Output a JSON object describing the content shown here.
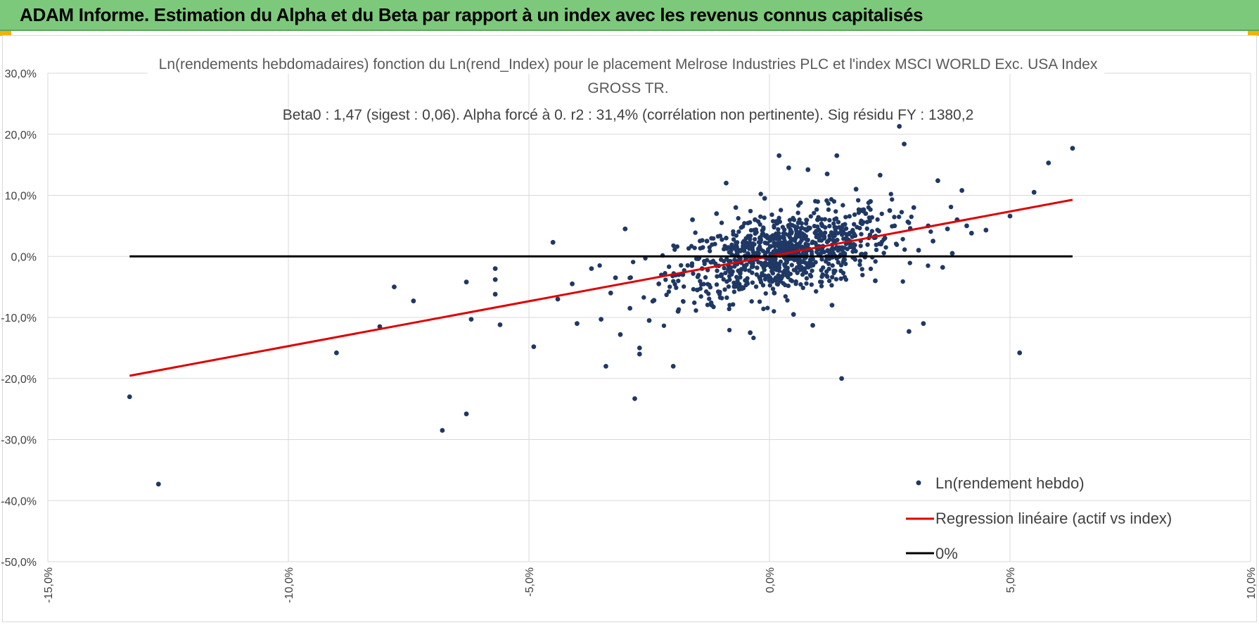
{
  "header": {
    "title": "ADAM Informe. Estimation du Alpha et du Beta par rapport à un index avec les revenus connus capitalisés"
  },
  "colors": {
    "header_bg": "#7dc97b",
    "points": "#1f3864",
    "regression": "#e00000",
    "zero_line": "#000000",
    "grid": "#d9d9d9"
  },
  "chart_data": {
    "type": "scatter",
    "title_line1": "Ln(rendements hebdomadaires) fonction du Ln(rend_Index) pour le placement Melrose Industries PLC et l'index MSCI WORLD Exc. USA Index",
    "title_line2": "GROSS TR.",
    "subtitle": "Beta0 : 1,47 (sigest : 0,06). Alpha forcé à 0. r2 : 31,4% (corrélation non pertinente). Sig résidu FY : 1380,2",
    "xlim": [
      -0.15,
      0.1
    ],
    "ylim": [
      -0.5,
      0.3
    ],
    "x_ticks": [
      "-15,0%",
      "-10,0%",
      "-5,0%",
      "0,0%",
      "5,0%",
      "10,0%"
    ],
    "y_ticks": [
      "30,0%",
      "20,0%",
      "10,0%",
      "0,0%",
      "-10,0%",
      "-20,0%",
      "-30,0%",
      "-40,0%",
      "-50,0%"
    ],
    "grid": true,
    "legend_position": "bottom-right",
    "series": [
      {
        "name": "Ln(rendement hebdo)",
        "kind": "points",
        "x": [
          -0.133,
          -0.127,
          -0.09,
          -0.081,
          -0.078,
          -0.074,
          -0.068,
          -0.063,
          -0.063,
          -0.062,
          -0.057,
          -0.057,
          -0.057,
          -0.056,
          -0.049,
          -0.045,
          -0.044,
          -0.041,
          -0.04,
          -0.037,
          -0.035,
          -0.034,
          -0.033,
          -0.032,
          -0.031,
          -0.03,
          -0.029,
          -0.028,
          -0.027,
          -0.027,
          -0.025,
          -0.024,
          -0.023,
          -0.02,
          -0.019,
          -0.018,
          -0.016,
          -0.015,
          -0.014,
          -0.013,
          -0.012,
          -0.011,
          -0.01,
          -0.009,
          -0.009,
          -0.007,
          -0.006,
          -0.005,
          -0.004,
          -0.003,
          -0.002,
          -0.001,
          0.001,
          0.002,
          0.003,
          0.004,
          0.005,
          0.006,
          0.007,
          0.008,
          0.009,
          0.01,
          0.011,
          0.012,
          0.013,
          0.014,
          0.015,
          0.016,
          0.018,
          0.019,
          0.02,
          0.021,
          0.022,
          0.023,
          0.024,
          0.025,
          0.026,
          0.027,
          0.028,
          0.029,
          0.03,
          0.031,
          0.032,
          0.033,
          0.034,
          0.035,
          0.036,
          0.037,
          0.038,
          0.039,
          0.04,
          0.041,
          0.042,
          0.045,
          0.05,
          0.052,
          0.055,
          0.058,
          0.063
        ],
        "y": [
          -0.23,
          -0.373,
          -0.158,
          -0.115,
          -0.05,
          -0.073,
          -0.285,
          -0.258,
          -0.042,
          -0.103,
          -0.062,
          -0.038,
          -0.02,
          -0.112,
          -0.148,
          0.023,
          -0.07,
          -0.045,
          -0.11,
          -0.02,
          -0.103,
          -0.18,
          -0.06,
          -0.035,
          -0.128,
          0.045,
          -0.085,
          -0.233,
          -0.15,
          -0.16,
          -0.105,
          -0.072,
          -0.045,
          -0.18,
          -0.09,
          -0.03,
          0.06,
          -0.055,
          -0.02,
          0.025,
          -0.08,
          0.07,
          -0.03,
          0.12,
          0.03,
          0.08,
          -0.05,
          0.015,
          -0.125,
          0.06,
          0.03,
          0.095,
          -0.06,
          0.165,
          0.03,
          0.145,
          -0.095,
          0.055,
          0.03,
          0.142,
          -0.113,
          0.06,
          0.05,
          0.135,
          -0.08,
          0.165,
          -0.2,
          0.03,
          0.11,
          0.055,
          0.07,
          0.09,
          -0.04,
          0.133,
          0.03,
          0.075,
          0.05,
          0.213,
          0.184,
          -0.123,
          0.08,
          0.01,
          -0.11,
          0.05,
          0.025,
          0.124,
          -0.018,
          0.045,
          0.005,
          0.06,
          0.108,
          0.05,
          0.038,
          0.043,
          0.066,
          -0.158,
          0.105,
          0.153,
          0.177
        ]
      },
      {
        "name": "Regression linéaire (actif vs index)",
        "kind": "line",
        "slope": 1.47,
        "x_range": [
          -0.133,
          0.063
        ]
      },
      {
        "name": "0%",
        "kind": "line",
        "slope": 0,
        "x_range": [
          -0.133,
          0.063
        ]
      }
    ]
  }
}
